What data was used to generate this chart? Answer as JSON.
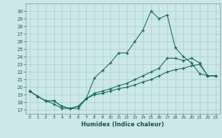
{
  "xlabel": "Humidex (Indice chaleur)",
  "background_color": "#cce8e8",
  "grid_color": "#aacccc",
  "line_color": "#1a6b5a",
  "xlim": [
    -0.5,
    23.5
  ],
  "ylim": [
    16.5,
    31.0
  ],
  "yticks": [
    17,
    18,
    19,
    20,
    21,
    22,
    23,
    24,
    25,
    26,
    27,
    28,
    29,
    30
  ],
  "xticks": [
    0,
    1,
    2,
    3,
    4,
    5,
    6,
    7,
    8,
    9,
    10,
    11,
    12,
    13,
    14,
    15,
    16,
    17,
    18,
    19,
    20,
    21,
    22,
    23
  ],
  "series1_x": [
    0,
    1,
    2,
    3,
    4,
    5,
    6,
    7,
    8,
    9,
    10,
    11,
    12,
    13,
    14,
    15,
    16,
    17,
    18,
    19,
    20,
    21,
    22,
    23
  ],
  "series1_y": [
    19.5,
    18.8,
    18.2,
    17.8,
    17.2,
    17.2,
    17.2,
    18.5,
    21.2,
    22.2,
    23.2,
    24.5,
    24.5,
    26.0,
    27.5,
    30.0,
    29.0,
    29.5,
    25.2,
    24.0,
    23.2,
    21.8,
    21.5,
    21.5
  ],
  "series2_x": [
    0,
    1,
    2,
    3,
    4,
    5,
    6,
    7,
    8,
    9,
    10,
    11,
    12,
    13,
    14,
    15,
    16,
    17,
    18,
    19,
    20,
    21,
    22,
    23
  ],
  "series2_y": [
    19.5,
    18.8,
    18.2,
    18.2,
    17.5,
    17.2,
    17.5,
    18.5,
    19.2,
    19.5,
    19.8,
    20.2,
    20.5,
    21.0,
    21.5,
    22.0,
    22.5,
    23.8,
    23.8,
    23.5,
    23.8,
    23.2,
    21.5,
    21.5
  ],
  "series3_x": [
    0,
    1,
    2,
    3,
    4,
    5,
    6,
    7,
    8,
    9,
    10,
    11,
    12,
    13,
    14,
    15,
    16,
    17,
    18,
    19,
    20,
    21,
    22,
    23
  ],
  "series3_y": [
    19.5,
    18.8,
    18.2,
    18.2,
    17.5,
    17.2,
    17.5,
    18.5,
    19.0,
    19.2,
    19.5,
    19.8,
    20.0,
    20.3,
    20.7,
    21.0,
    21.5,
    22.0,
    22.3,
    22.5,
    22.8,
    23.0,
    21.5,
    21.5
  ]
}
